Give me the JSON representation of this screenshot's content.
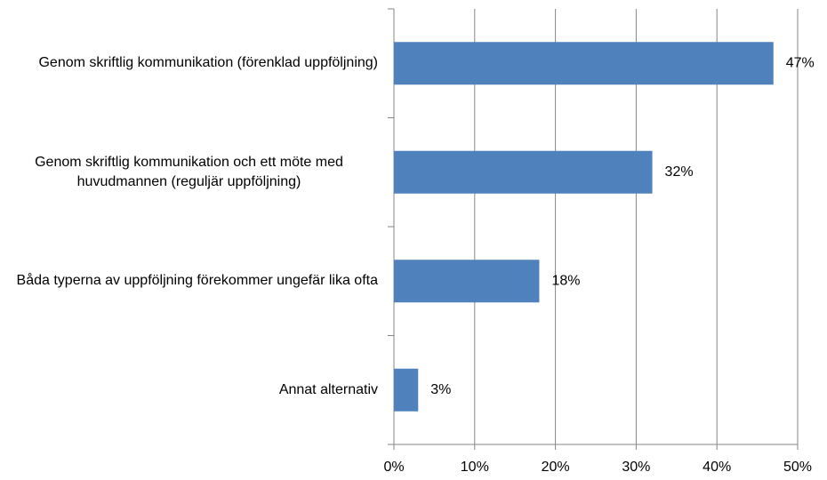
{
  "chart_data": {
    "type": "hbar",
    "categories": [
      "Genom skriftlig kommunikation (förenklad uppföljning)",
      "Genom skriftlig kommunikation och ett möte med huvudmannen (reguljär uppföljning)",
      "Båda typerna av uppföljning förekommer ungefär lika ofta",
      "Annat alternativ"
    ],
    "values": [
      47,
      32,
      18,
      3
    ],
    "value_labels": [
      "47%",
      "32%",
      "18%",
      "3%"
    ],
    "color": "#4f81bd",
    "xlim": [
      0,
      50
    ],
    "xticks": [
      {
        "value": 0,
        "label": "0%"
      },
      {
        "value": 10,
        "label": "10%"
      },
      {
        "value": 20,
        "label": "20%"
      },
      {
        "value": 30,
        "label": "30%"
      },
      {
        "value": 40,
        "label": "40%"
      },
      {
        "value": 50,
        "label": "50%"
      }
    ],
    "grid": true
  }
}
